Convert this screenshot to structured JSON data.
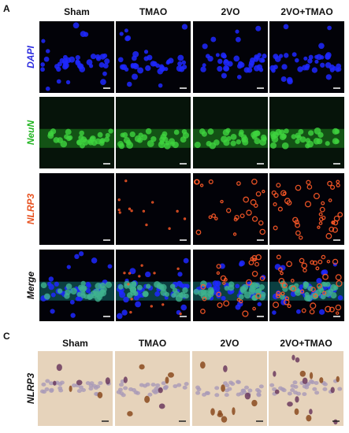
{
  "panels": [
    {
      "label": "A",
      "columns": [
        "Sham",
        "TMAO",
        "2VO",
        "2VO+TMAO"
      ],
      "rows": [
        "DAPI",
        "NeuN",
        "NLRP3",
        "Merge"
      ]
    },
    {
      "label": "C",
      "columns": [
        "Sham",
        "TMAO",
        "2VO",
        "2VO+TMAO"
      ],
      "rows": [
        "NLRP3"
      ]
    }
  ]
}
